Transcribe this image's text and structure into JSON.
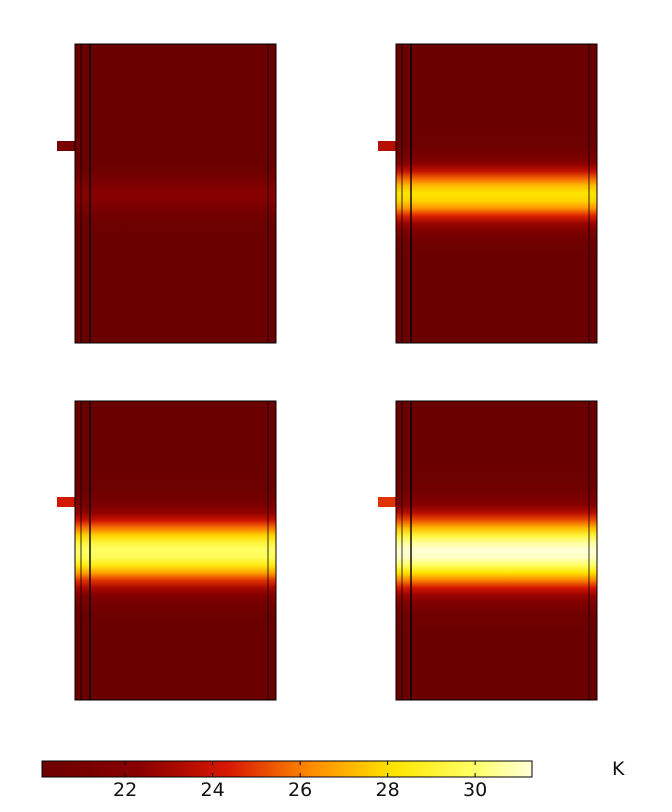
{
  "figure": {
    "panels": [
      {
        "id": "panel-1",
        "heat_band_intensity": 0.18
      },
      {
        "id": "panel-2",
        "heat_band_intensity": 0.72
      },
      {
        "id": "panel-3",
        "heat_band_intensity": 0.88
      },
      {
        "id": "panel-4",
        "heat_band_intensity": 1.0
      }
    ],
    "colorbar": {
      "min": 20.1,
      "max": 31.3,
      "ticks": [
        "22",
        "24",
        "26",
        "28",
        "30"
      ],
      "tick_values": [
        22,
        24,
        26,
        28,
        30
      ],
      "unit": "K",
      "colormap": "heat",
      "colors": {
        "low": "#6b0000",
        "mid_low": "#cc1100",
        "mid": "#ff8800",
        "mid_high": "#ffee00",
        "high": "#ffffcc"
      }
    }
  }
}
